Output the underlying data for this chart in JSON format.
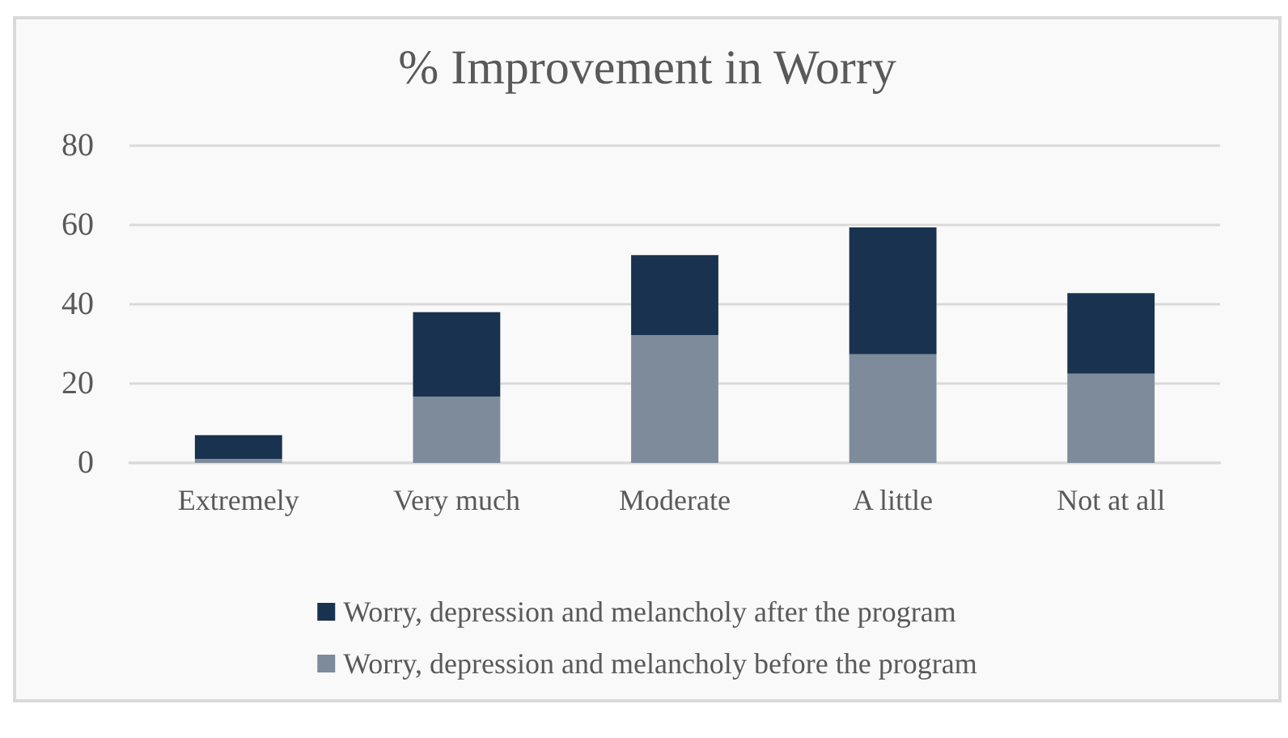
{
  "chart_data": {
    "type": "bar",
    "title": "% Improvement in Worry",
    "stacked": true,
    "categories": [
      "Extremely",
      "Very much",
      "Moderate",
      "A little",
      "Not at all"
    ],
    "series": [
      {
        "name": "Worry, depression and melancholy before the program",
        "color": "#7d8b9b",
        "values": [
          1,
          16.7,
          32.2,
          27.4,
          22.5
        ]
      },
      {
        "name": "Worry, depression and melancholy after the program",
        "color": "#193250",
        "values": [
          6,
          21.3,
          20.2,
          32,
          20.3
        ]
      }
    ],
    "ylim": [
      0,
      80
    ],
    "yticks": [
      0,
      20,
      40,
      60,
      80
    ],
    "grid": "y",
    "legend": "bottom"
  }
}
